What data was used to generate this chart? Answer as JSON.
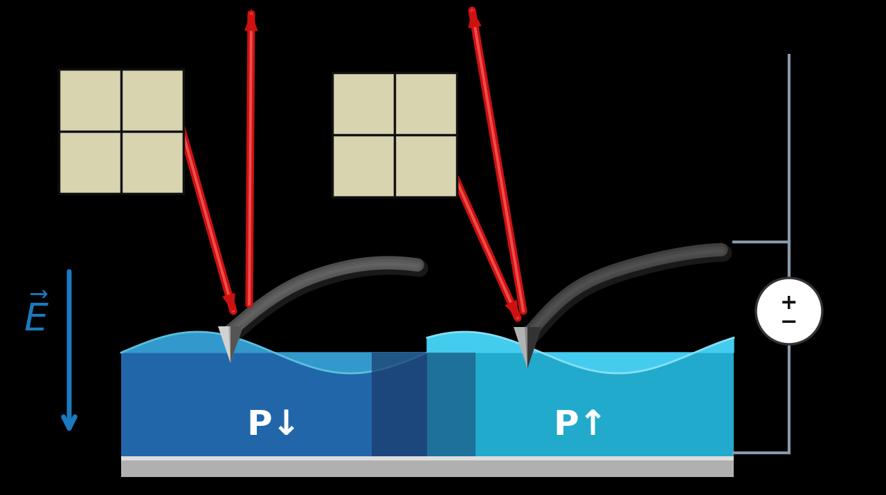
{
  "bg_color": "#000000",
  "sample_color_left_main": "#2266aa",
  "sample_color_left_top": "#3399cc",
  "sample_color_right_main": "#22aacc",
  "sample_color_right_top": "#55ccee",
  "sample_base_color_light": "#bbbbbb",
  "sample_base_color_dark": "#888888",
  "cantilever_color_light": "#cccccc",
  "cantilever_color_mid": "#999999",
  "cantilever_color_dark": "#555555",
  "laser_color": "#cc1111",
  "laser_outline": "#ff8888",
  "detector_color": "#d8d4b0",
  "detector_edge": "#aaaaaa",
  "E_arrow_color": "#1a7abf",
  "wire_color": "#8899aa",
  "P_down_label": "P↓",
  "P_up_label": "P↑"
}
